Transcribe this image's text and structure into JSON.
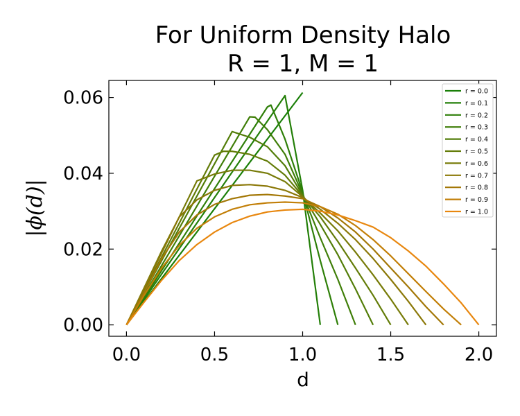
{
  "chart_data": {
    "type": "line",
    "title_line1": "For Uniform Density Halo",
    "title_line2": "R = 1, M = 1",
    "xlabel": "d",
    "ylabel": "|ϕ(d)|",
    "xlim": [
      -0.1,
      2.1
    ],
    "ylim": [
      -0.003,
      0.0645
    ],
    "xticks": [
      0.0,
      0.5,
      1.0,
      1.5,
      2.0
    ],
    "xtick_labels": [
      "0.0",
      "0.5",
      "1.0",
      "1.5",
      "2.0"
    ],
    "yticks": [
      0.0,
      0.02,
      0.04,
      0.06
    ],
    "ytick_labels": [
      "0.00",
      "0.02",
      "0.04",
      "0.06"
    ],
    "grid": false,
    "legend_position": "top-right",
    "series": [
      {
        "name": "r = 0.0",
        "color": "#1a7f08",
        "points": [
          [
            0,
            0
          ],
          [
            1.0,
            0.0613
          ]
        ]
      },
      {
        "name": "r = 0.1",
        "color": "#237f08",
        "points": [
          [
            0,
            0
          ],
          [
            0.9,
            0.0605
          ],
          [
            1.0,
            0.0355
          ],
          [
            1.1,
            0
          ]
        ]
      },
      {
        "name": "r = 0.2",
        "color": "#2e7f08",
        "points": [
          [
            0,
            0
          ],
          [
            0.8,
            0.0575
          ],
          [
            0.82,
            0.058
          ],
          [
            0.9,
            0.049
          ],
          [
            1.0,
            0.035
          ],
          [
            1.1,
            0.017
          ],
          [
            1.2,
            0
          ]
        ]
      },
      {
        "name": "r = 0.3",
        "color": "#3f7e08",
        "points": [
          [
            0,
            0
          ],
          [
            0.7,
            0.0549
          ],
          [
            0.73,
            0.0548
          ],
          [
            0.8,
            0.0515
          ],
          [
            0.9,
            0.045
          ],
          [
            1.0,
            0.0345
          ],
          [
            1.1,
            0.023
          ],
          [
            1.2,
            0.012
          ],
          [
            1.3,
            0
          ]
        ]
      },
      {
        "name": "r = 0.4",
        "color": "#527d08",
        "points": [
          [
            0,
            0
          ],
          [
            0.6,
            0.051
          ],
          [
            0.7,
            0.0495
          ],
          [
            0.8,
            0.047
          ],
          [
            0.9,
            0.042
          ],
          [
            1.0,
            0.0342
          ],
          [
            1.1,
            0.0265
          ],
          [
            1.2,
            0.0185
          ],
          [
            1.3,
            0.0095
          ],
          [
            1.4,
            0
          ]
        ]
      },
      {
        "name": "r = 0.5",
        "color": "#637c08",
        "points": [
          [
            0,
            0
          ],
          [
            0.5,
            0.0448
          ],
          [
            0.55,
            0.0458
          ],
          [
            0.6,
            0.0458
          ],
          [
            0.7,
            0.045
          ],
          [
            0.8,
            0.0432
          ],
          [
            0.9,
            0.0395
          ],
          [
            1.0,
            0.034
          ],
          [
            1.1,
            0.0285
          ],
          [
            1.2,
            0.022
          ],
          [
            1.3,
            0.015
          ],
          [
            1.4,
            0.0078
          ],
          [
            1.5,
            0
          ]
        ]
      },
      {
        "name": "r = 0.6",
        "color": "#777b08",
        "points": [
          [
            0,
            0
          ],
          [
            0.2,
            0.0195
          ],
          [
            0.3,
            0.0285
          ],
          [
            0.4,
            0.038
          ],
          [
            0.5,
            0.0398
          ],
          [
            0.6,
            0.0408
          ],
          [
            0.7,
            0.0408
          ],
          [
            0.8,
            0.04
          ],
          [
            0.9,
            0.0378
          ],
          [
            1.0,
            0.0338
          ],
          [
            1.1,
            0.0295
          ],
          [
            1.2,
            0.0248
          ],
          [
            1.3,
            0.0192
          ],
          [
            1.4,
            0.0132
          ],
          [
            1.5,
            0.0068
          ],
          [
            1.6,
            0
          ]
        ]
      },
      {
        "name": "r = 0.7",
        "color": "#8b7808",
        "points": [
          [
            0,
            0
          ],
          [
            0.1,
            0.0095
          ],
          [
            0.2,
            0.019
          ],
          [
            0.3,
            0.0285
          ],
          [
            0.4,
            0.033
          ],
          [
            0.5,
            0.0355
          ],
          [
            0.6,
            0.0368
          ],
          [
            0.7,
            0.037
          ],
          [
            0.8,
            0.0366
          ],
          [
            0.9,
            0.0355
          ],
          [
            1.0,
            0.0336
          ],
          [
            1.1,
            0.0305
          ],
          [
            1.2,
            0.0268
          ],
          [
            1.3,
            0.0225
          ],
          [
            1.4,
            0.0175
          ],
          [
            1.5,
            0.012
          ],
          [
            1.6,
            0.0062
          ],
          [
            1.7,
            0
          ]
        ]
      },
      {
        "name": "r = 0.8",
        "color": "#a37706",
        "points": [
          [
            0,
            0
          ],
          [
            0.1,
            0.0085
          ],
          [
            0.2,
            0.0175
          ],
          [
            0.3,
            0.0245
          ],
          [
            0.4,
            0.029
          ],
          [
            0.5,
            0.0318
          ],
          [
            0.6,
            0.0333
          ],
          [
            0.7,
            0.0342
          ],
          [
            0.8,
            0.0344
          ],
          [
            0.9,
            0.034
          ],
          [
            1.0,
            0.0333
          ],
          [
            1.1,
            0.0312
          ],
          [
            1.2,
            0.0282
          ],
          [
            1.3,
            0.0245
          ],
          [
            1.4,
            0.02
          ],
          [
            1.5,
            0.015
          ],
          [
            1.6,
            0.01
          ],
          [
            1.7,
            0.0048
          ],
          [
            1.8,
            0
          ]
        ]
      },
      {
        "name": "r = 0.9",
        "color": "#c27f08",
        "points": [
          [
            0,
            0
          ],
          [
            0.1,
            0.0078
          ],
          [
            0.2,
            0.015
          ],
          [
            0.3,
            0.021
          ],
          [
            0.4,
            0.0255
          ],
          [
            0.5,
            0.0285
          ],
          [
            0.6,
            0.0305
          ],
          [
            0.7,
            0.0317
          ],
          [
            0.8,
            0.0322
          ],
          [
            0.9,
            0.0324
          ],
          [
            1.0,
            0.0322
          ],
          [
            1.1,
            0.0312
          ],
          [
            1.2,
            0.0292
          ],
          [
            1.3,
            0.0262
          ],
          [
            1.4,
            0.0225
          ],
          [
            1.5,
            0.0182
          ],
          [
            1.6,
            0.0135
          ],
          [
            1.7,
            0.0088
          ],
          [
            1.8,
            0.0042
          ],
          [
            1.9,
            0
          ]
        ]
      },
      {
        "name": "r = 1.0",
        "color": "#e8870f",
        "points": [
          [
            0,
            0
          ],
          [
            0.1,
            0.006
          ],
          [
            0.2,
            0.0118
          ],
          [
            0.3,
            0.017
          ],
          [
            0.4,
            0.0212
          ],
          [
            0.5,
            0.0245
          ],
          [
            0.6,
            0.027
          ],
          [
            0.7,
            0.0287
          ],
          [
            0.8,
            0.0298
          ],
          [
            0.9,
            0.0303
          ],
          [
            1.0,
            0.0305
          ],
          [
            1.1,
            0.03
          ],
          [
            1.2,
            0.029
          ],
          [
            1.3,
            0.0275
          ],
          [
            1.4,
            0.0258
          ],
          [
            1.5,
            0.023
          ],
          [
            1.6,
            0.0195
          ],
          [
            1.7,
            0.0155
          ],
          [
            1.8,
            0.0108
          ],
          [
            1.9,
            0.0058
          ],
          [
            2.0,
            0
          ]
        ]
      }
    ]
  }
}
